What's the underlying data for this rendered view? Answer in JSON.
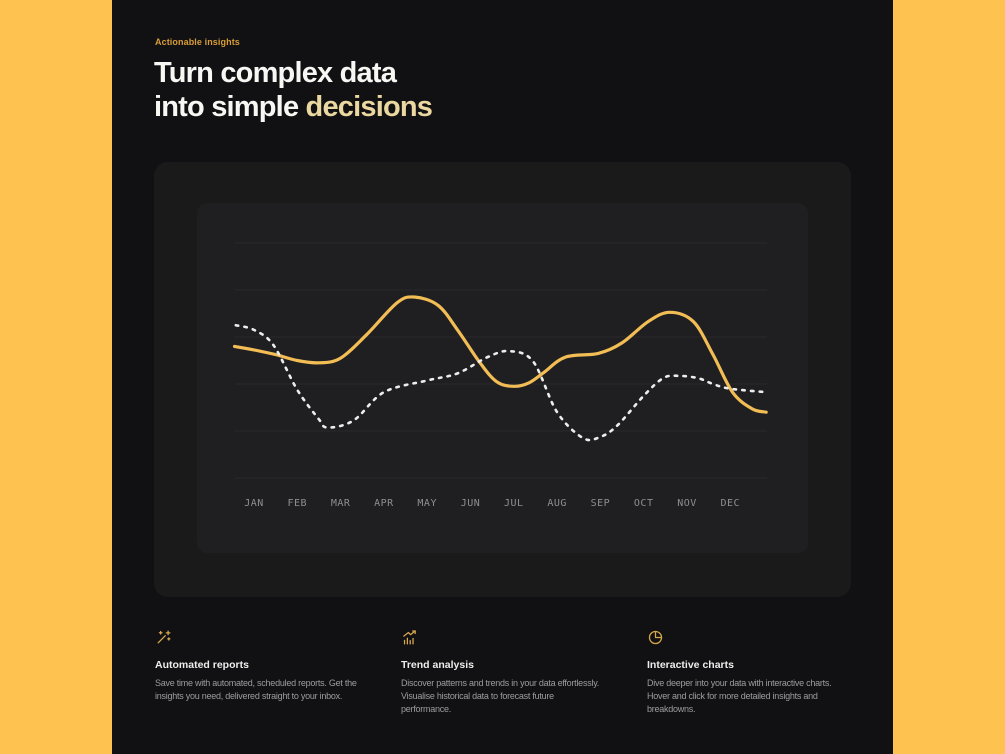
{
  "page": {
    "eyebrow": "Actionable insights",
    "heading_line1": "Turn complex data",
    "heading_line2_prefix": "into simple ",
    "heading_line2_accent": "decisions"
  },
  "chart_data": {
    "type": "line",
    "title": "",
    "xlabel": "",
    "ylabel": "",
    "x_categories": [
      "JAN",
      "FEB",
      "MAR",
      "APR",
      "MAY",
      "JUN",
      "JUL",
      "AUG",
      "SEP",
      "OCT",
      "NOV",
      "DEC"
    ],
    "ylim": [
      0,
      100
    ],
    "grid": "horizontal",
    "gridline_count": 6,
    "legend_position": "none",
    "series": [
      {
        "name": "primary-trend",
        "style": "solid",
        "color": "#F2BD55",
        "points": [
          [
            -0.45,
            56
          ],
          [
            0,
            54.5
          ],
          [
            0.5,
            52.5
          ],
          [
            1.0,
            50
          ],
          [
            1.5,
            49
          ],
          [
            2.0,
            51
          ],
          [
            2.6,
            61
          ],
          [
            3.3,
            74.5
          ],
          [
            3.7,
            77
          ],
          [
            4.25,
            73.5
          ],
          [
            4.7,
            63
          ],
          [
            5.2,
            49.5
          ],
          [
            5.6,
            41
          ],
          [
            6.0,
            39
          ],
          [
            6.35,
            40.5
          ],
          [
            6.7,
            45
          ],
          [
            7.2,
            51.5
          ],
          [
            7.95,
            53
          ],
          [
            8.5,
            57.5
          ],
          [
            9.1,
            66.5
          ],
          [
            9.6,
            70.5
          ],
          [
            10.15,
            66.5
          ],
          [
            10.6,
            52.5
          ],
          [
            11.05,
            36.5
          ],
          [
            11.5,
            29.5
          ],
          [
            11.83,
            28
          ]
        ]
      },
      {
        "name": "secondary-trend",
        "style": "dashed",
        "color": "#EDEDED",
        "points": [
          [
            -0.42,
            65
          ],
          [
            0,
            63
          ],
          [
            0.45,
            56.5
          ],
          [
            1.0,
            37.5
          ],
          [
            1.5,
            25
          ],
          [
            1.7,
            21.5
          ],
          [
            2.3,
            24.5
          ],
          [
            3.0,
            36.5
          ],
          [
            4.0,
            41.5
          ],
          [
            4.7,
            44.5
          ],
          [
            5.4,
            51.5
          ],
          [
            5.9,
            54
          ],
          [
            6.45,
            49.5
          ],
          [
            7.0,
            28
          ],
          [
            7.6,
            17
          ],
          [
            8.0,
            17.5
          ],
          [
            8.4,
            22.5
          ],
          [
            9.0,
            35
          ],
          [
            9.45,
            42.5
          ],
          [
            9.8,
            43.5
          ],
          [
            10.25,
            42.5
          ],
          [
            10.6,
            40
          ],
          [
            11.0,
            38
          ],
          [
            11.83,
            36.5
          ]
        ]
      }
    ]
  },
  "features": [
    {
      "icon": "wand-sparkles-icon",
      "title": "Automated reports",
      "description": "Save time with automated, scheduled reports. Get the\ninsights you need, delivered straight to your inbox."
    },
    {
      "icon": "trend-chart-icon",
      "title": "Trend analysis",
      "description": "Discover patterns and trends in your data effortlessly.\nVisualise historical data to forecast future\nperformance."
    },
    {
      "icon": "pie-chart-icon",
      "title": "Interactive charts",
      "description": "Dive deeper into your data with interactive charts.\nHover and click for more detailed insights and\nbreakdowns."
    }
  ],
  "colors": {
    "accent_yellow": "#FDC24F",
    "line_yellow": "#F2BD55",
    "line_white": "#EDEDED",
    "heading_accent": "#EBD7A0",
    "eyebrow_gold": "#D89D3A",
    "icon_gold": "#D8A84E",
    "axis_label": "#8F8F91"
  }
}
